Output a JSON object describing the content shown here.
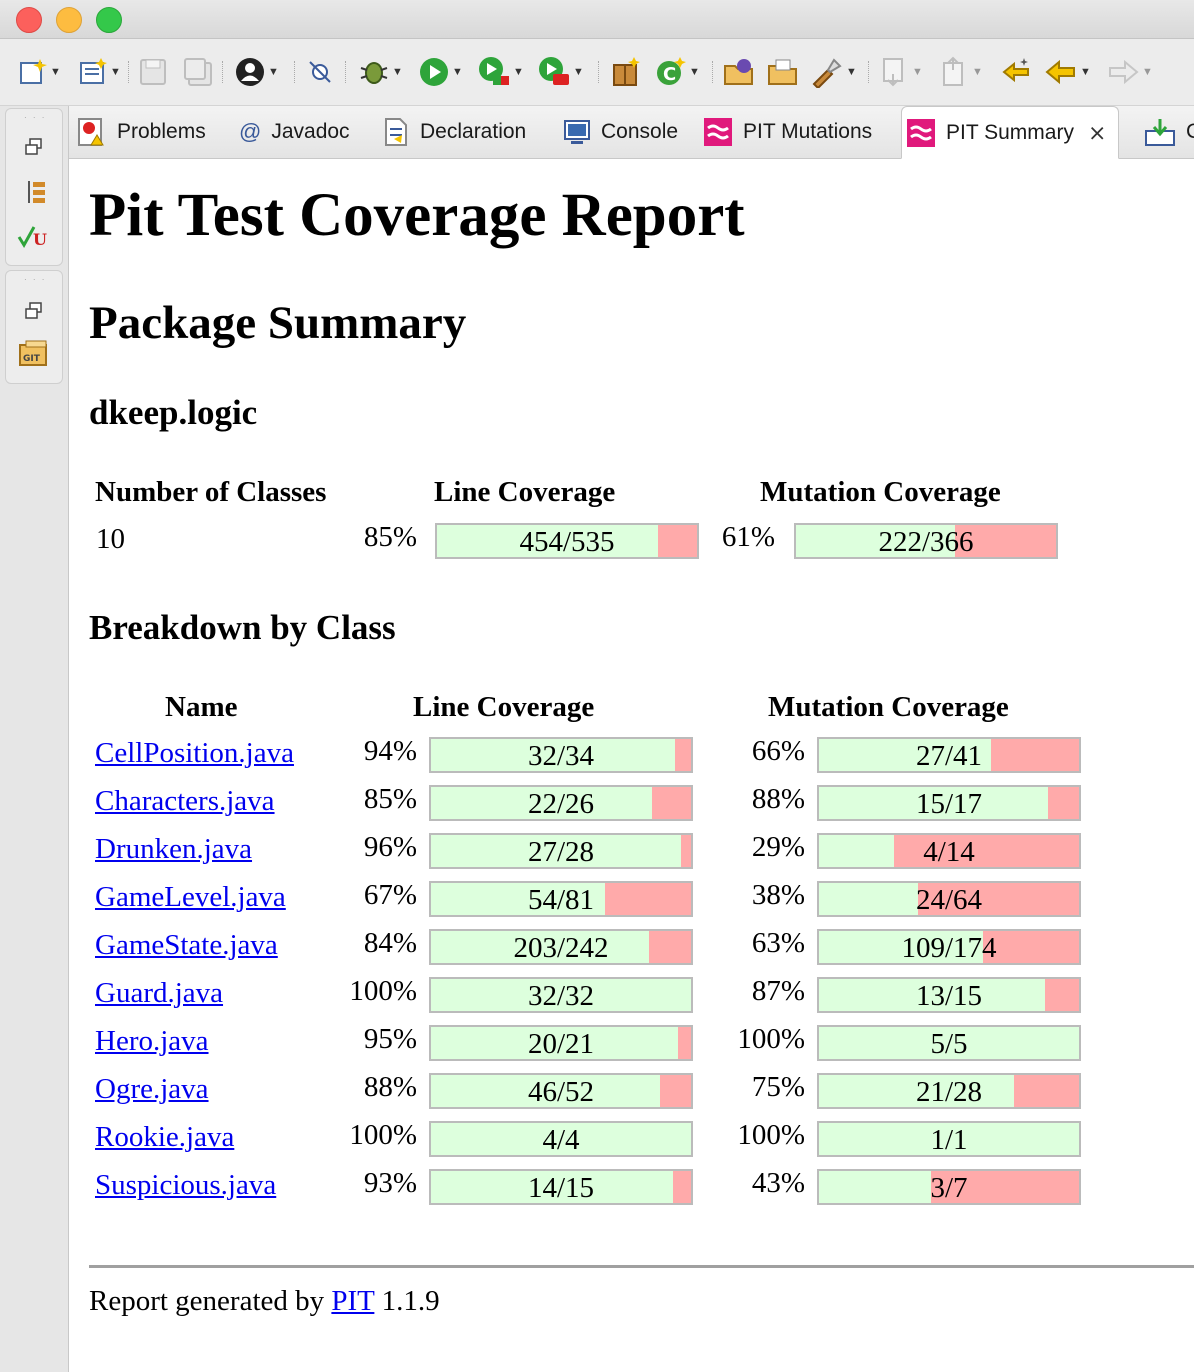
{
  "tabs": [
    {
      "label": "Problems",
      "icon": "problems-icon"
    },
    {
      "label": "Javadoc",
      "icon": "javadoc-icon"
    },
    {
      "label": "Declaration",
      "icon": "declaration-icon"
    },
    {
      "label": "Console",
      "icon": "console-icon"
    },
    {
      "label": "PIT Mutations",
      "icon": "pit-icon"
    },
    {
      "label": "PIT Summary",
      "icon": "pit-icon",
      "active": true
    },
    {
      "label": "C",
      "icon": "download-icon"
    }
  ],
  "report": {
    "title": "Pit Test Coverage Report",
    "package_summary_heading": "Package Summary",
    "package_name": "dkeep.logic",
    "summary_headers": {
      "classes": "Number of Classes",
      "line": "Line Coverage",
      "mutation": "Mutation Coverage"
    },
    "summary": {
      "classes": "10",
      "line_pct": "85%",
      "line_ratio": "454/535",
      "line_value": 0.85,
      "mutation_pct": "61%",
      "mutation_ratio": "222/366",
      "mutation_value": 0.61
    },
    "breakdown_heading": "Breakdown by Class",
    "breakdown_headers": {
      "name": "Name",
      "line": "Line Coverage",
      "mutation": "Mutation Coverage"
    },
    "classes": [
      {
        "name": "CellPosition.java",
        "line_pct": "94%",
        "line_ratio": "32/34",
        "line_value": 0.94,
        "mut_pct": "66%",
        "mut_ratio": "27/41",
        "mut_value": 0.66
      },
      {
        "name": "Characters.java",
        "line_pct": "85%",
        "line_ratio": "22/26",
        "line_value": 0.85,
        "mut_pct": "88%",
        "mut_ratio": "15/17",
        "mut_value": 0.88
      },
      {
        "name": "Drunken.java",
        "line_pct": "96%",
        "line_ratio": "27/28",
        "line_value": 0.96,
        "mut_pct": "29%",
        "mut_ratio": "4/14",
        "mut_value": 0.29
      },
      {
        "name": "GameLevel.java",
        "line_pct": "67%",
        "line_ratio": "54/81",
        "line_value": 0.67,
        "mut_pct": "38%",
        "mut_ratio": "24/64",
        "mut_value": 0.38
      },
      {
        "name": "GameState.java",
        "line_pct": "84%",
        "line_ratio": "203/242",
        "line_value": 0.84,
        "mut_pct": "63%",
        "mut_ratio": "109/174",
        "mut_value": 0.63
      },
      {
        "name": "Guard.java",
        "line_pct": "100%",
        "line_ratio": "32/32",
        "line_value": 1.0,
        "mut_pct": "87%",
        "mut_ratio": "13/15",
        "mut_value": 0.87
      },
      {
        "name": "Hero.java",
        "line_pct": "95%",
        "line_ratio": "20/21",
        "line_value": 0.95,
        "mut_pct": "100%",
        "mut_ratio": "5/5",
        "mut_value": 1.0
      },
      {
        "name": "Ogre.java",
        "line_pct": "88%",
        "line_ratio": "46/52",
        "line_value": 0.88,
        "mut_pct": "75%",
        "mut_ratio": "21/28",
        "mut_value": 0.75
      },
      {
        "name": "Rookie.java",
        "line_pct": "100%",
        "line_ratio": "4/4",
        "line_value": 1.0,
        "mut_pct": "100%",
        "mut_ratio": "1/1",
        "mut_value": 1.0
      },
      {
        "name": "Suspicious.java",
        "line_pct": "93%",
        "line_ratio": "14/15",
        "line_value": 0.93,
        "mut_pct": "43%",
        "mut_ratio": "3/7",
        "mut_value": 0.43
      }
    ],
    "footer": {
      "prefix": "Report generated by",
      "link": "PIT",
      "version": "1.1.9"
    }
  },
  "colors": {
    "covered": "#ddffdd",
    "uncovered": "#ffaaaa",
    "link": "#0000ee"
  }
}
